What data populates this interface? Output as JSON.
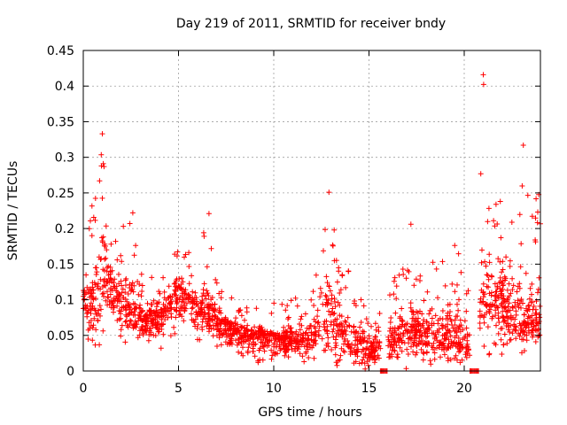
{
  "chart_data": {
    "type": "scatter",
    "title": "Day 219 of 2011, SRMTID for receiver bndy",
    "xlabel": "GPS time / hours",
    "ylabel": "SRMTID / TECUs",
    "xlim": [
      0,
      24
    ],
    "ylim": [
      0,
      0.45
    ],
    "xticks": [
      0,
      5,
      10,
      15,
      20
    ],
    "yticks": [
      0,
      0.05,
      0.1,
      0.15,
      0.2,
      0.25,
      0.3,
      0.35,
      0.4,
      0.45
    ],
    "grid": true,
    "marker": "+",
    "color": "#ff0000",
    "legend": "none",
    "gaps_hours": [
      [
        15.6,
        16.0
      ],
      [
        20.3,
        20.8
      ]
    ],
    "notable_points": [
      {
        "x": 1.0,
        "y": 0.333
      },
      {
        "x": 12.9,
        "y": 0.251
      },
      {
        "x": 21.0,
        "y": 0.416
      },
      {
        "x": 23.1,
        "y": 0.317
      },
      {
        "x": 2.6,
        "y": 0.222
      },
      {
        "x": 6.6,
        "y": 0.221
      },
      {
        "x": 17.2,
        "y": 0.206
      }
    ],
    "hourly_profile": {
      "x": [
        0,
        0.5,
        1.0,
        1.5,
        2.0,
        2.5,
        3.0,
        3.5,
        4.0,
        4.5,
        5.0,
        5.5,
        6.0,
        6.5,
        7.0,
        7.5,
        8.0,
        8.5,
        9.0,
        9.5,
        10.0,
        10.5,
        11.0,
        11.5,
        12.0,
        12.5,
        13.0,
        13.5,
        14.0,
        14.5,
        15.0,
        15.5,
        16.0,
        16.5,
        17.0,
        17.5,
        18.0,
        18.5,
        19.0,
        19.5,
        20.0,
        20.5,
        21.0,
        21.5,
        22.0,
        22.5,
        23.0,
        23.5,
        24.0
      ],
      "center": [
        0.1,
        0.09,
        0.14,
        0.12,
        0.09,
        0.09,
        0.07,
        0.07,
        0.075,
        0.09,
        0.11,
        0.1,
        0.09,
        0.08,
        0.07,
        0.065,
        0.055,
        0.05,
        0.05,
        0.05,
        0.045,
        0.045,
        0.045,
        0.04,
        0.05,
        0.06,
        0.08,
        0.06,
        0.04,
        0.04,
        0.03,
        0.03,
        0.04,
        0.05,
        0.06,
        0.06,
        0.05,
        0.05,
        0.05,
        0.05,
        0.04,
        0.04,
        0.11,
        0.1,
        0.09,
        0.07,
        0.07,
        0.07,
        0.08
      ],
      "max": [
        0.16,
        0.24,
        0.33,
        0.2,
        0.2,
        0.22,
        0.14,
        0.13,
        0.14,
        0.15,
        0.18,
        0.17,
        0.16,
        0.22,
        0.13,
        0.11,
        0.1,
        0.09,
        0.09,
        0.09,
        0.1,
        0.1,
        0.11,
        0.09,
        0.12,
        0.25,
        0.25,
        0.15,
        0.15,
        0.11,
        0.09,
        0.08,
        0.1,
        0.15,
        0.2,
        0.14,
        0.16,
        0.17,
        0.15,
        0.2,
        0.15,
        0.1,
        0.42,
        0.25,
        0.26,
        0.21,
        0.32,
        0.24,
        0.25
      ],
      "min": [
        0.06,
        0.02,
        0.04,
        0.05,
        0.04,
        0.04,
        0.03,
        0.04,
        0.03,
        0.04,
        0.05,
        0.05,
        0.04,
        0.04,
        0.03,
        0.02,
        0.02,
        0.01,
        0.01,
        0.01,
        0.01,
        0.01,
        0.01,
        0.01,
        0.01,
        0.01,
        0.0,
        0.0,
        0.0,
        0.0,
        0.0,
        0.0,
        0.0,
        0.0,
        0.0,
        0.0,
        0.0,
        0.0,
        0.0,
        0.0,
        0.0,
        0.0,
        0.03,
        0.01,
        0.01,
        0.01,
        0.01,
        0.01,
        0.02
      ]
    }
  }
}
